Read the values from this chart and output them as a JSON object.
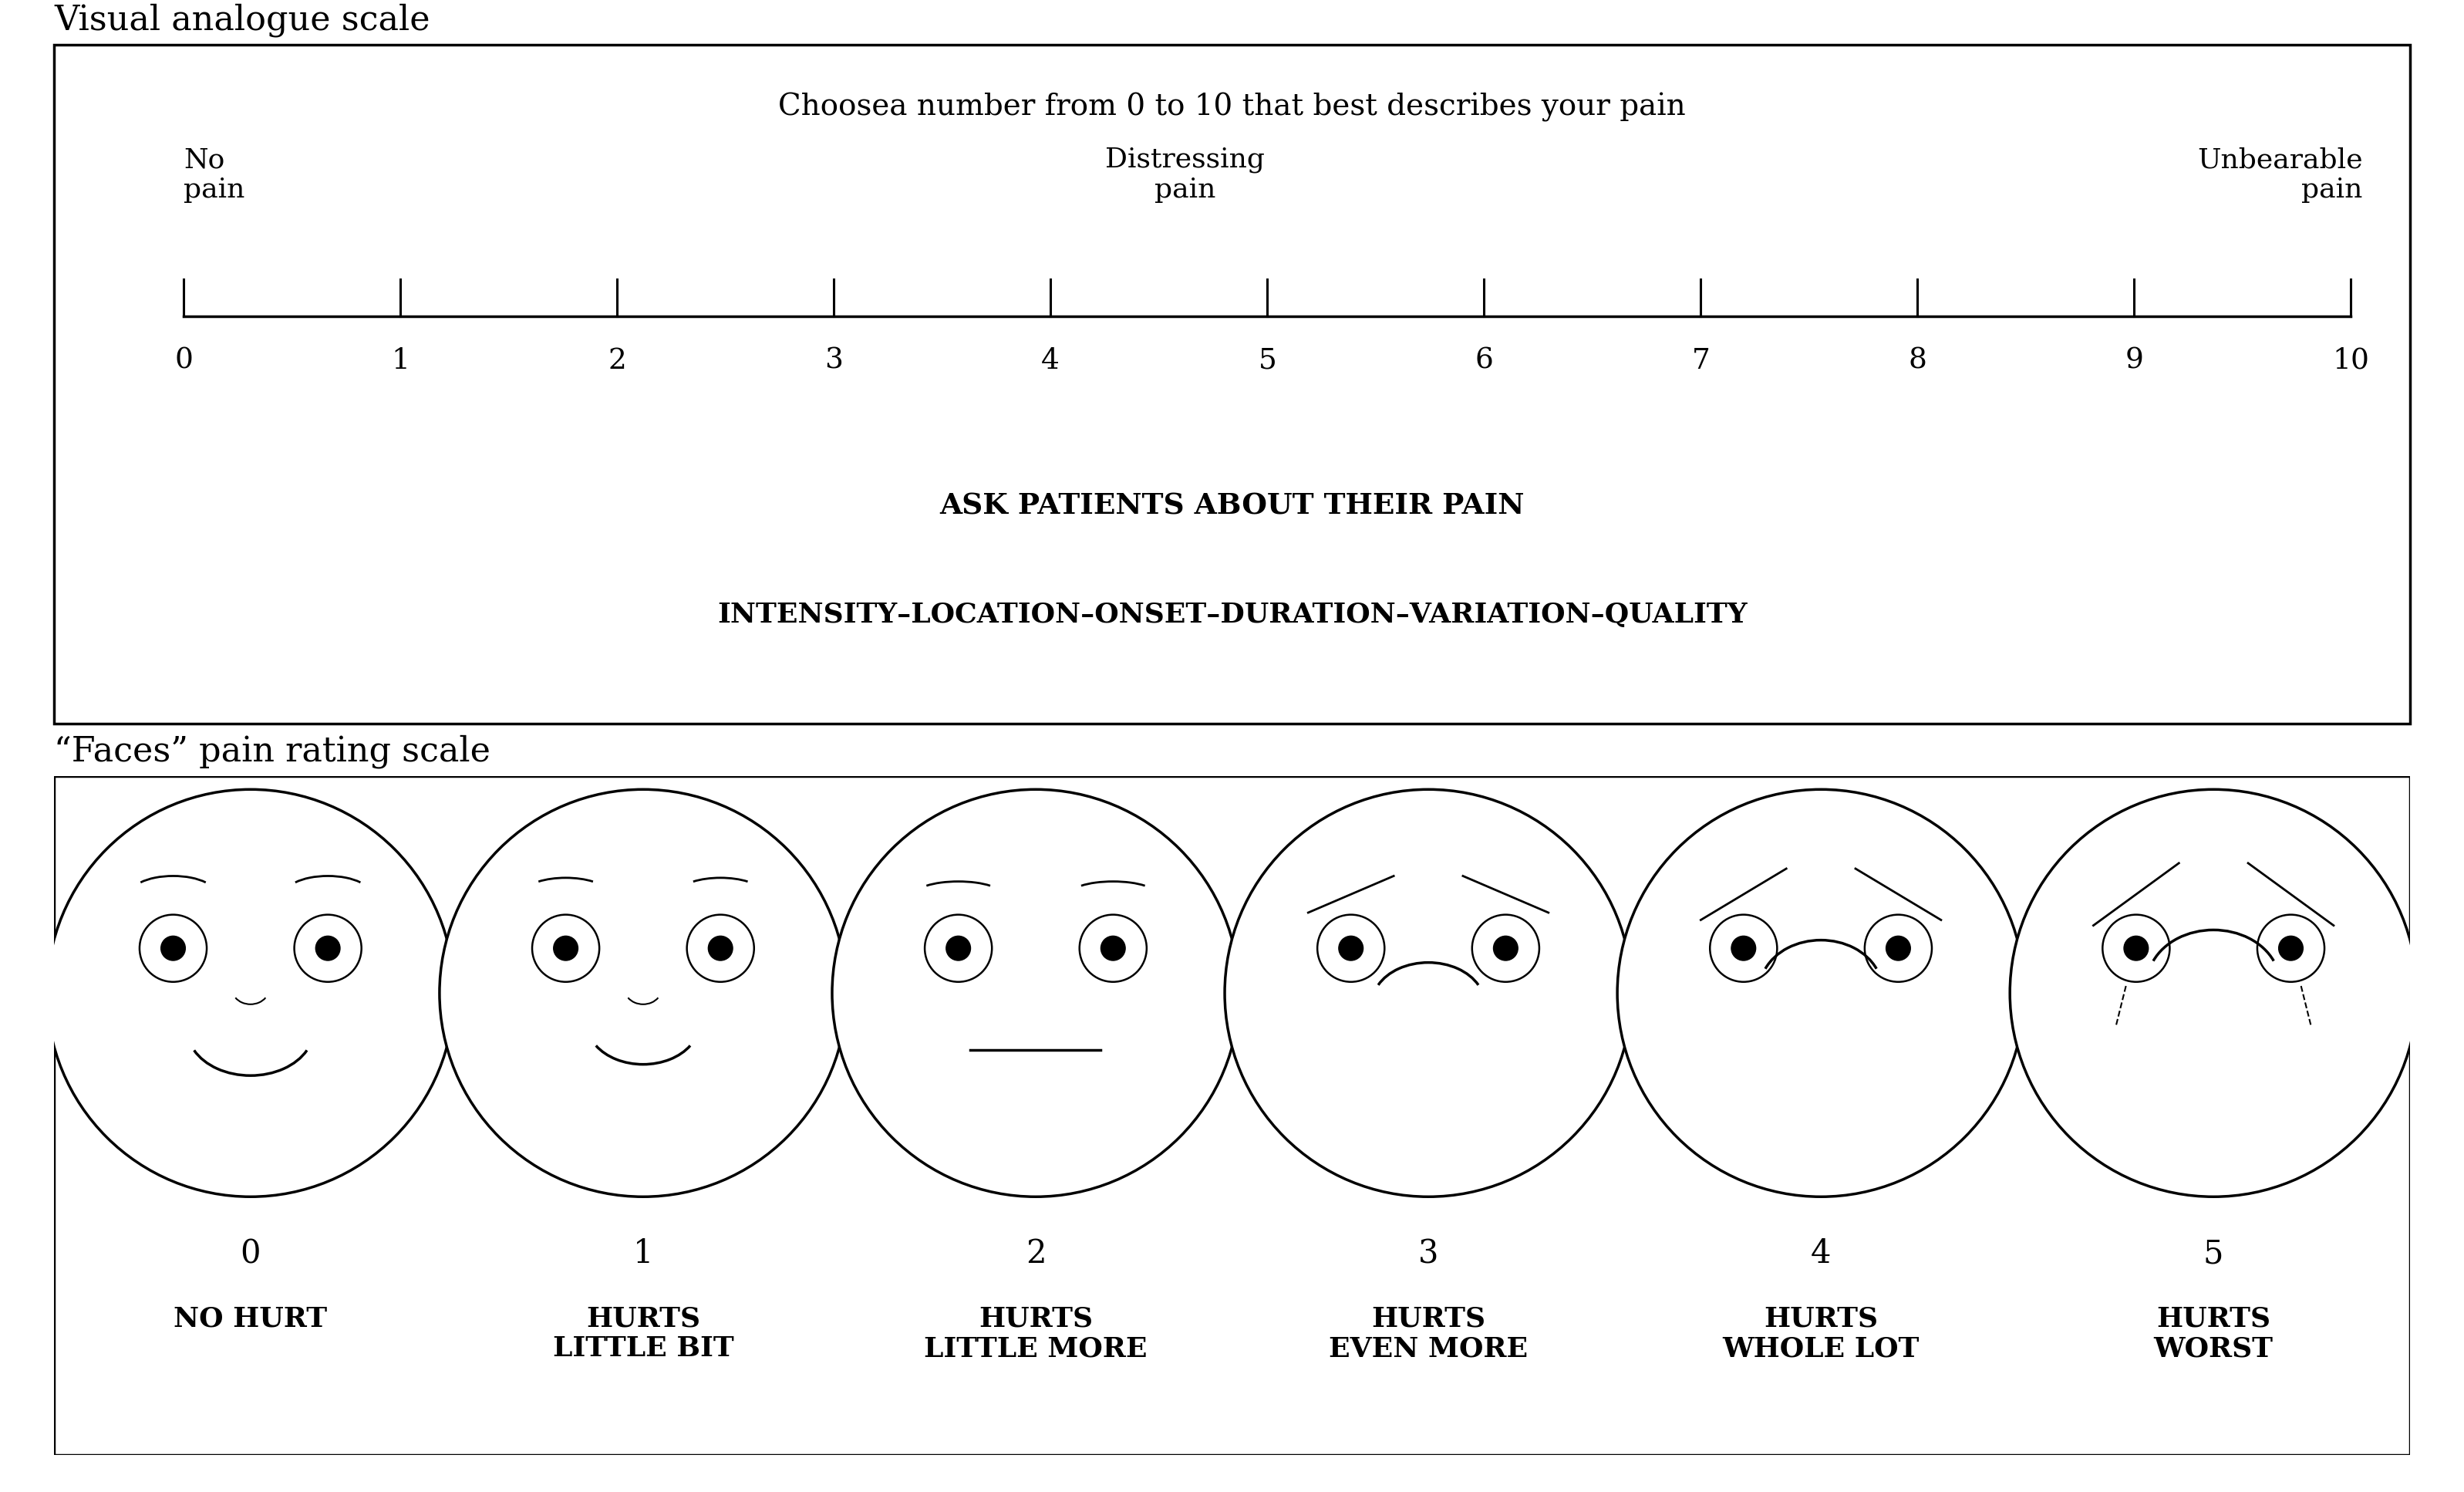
{
  "title_vas": "Visual analogue scale",
  "title_faces": "“Faces” pain rating scale",
  "vas_instruction": "Choosea number from 0 to 10 that best describes your pain",
  "vas_label_left": "No\npain",
  "vas_label_mid": "Distressing\npain",
  "vas_label_right": "Unbearable\npain",
  "vas_numbers": [
    0,
    1,
    2,
    3,
    4,
    5,
    6,
    7,
    8,
    9,
    10
  ],
  "vas_text1": "ASK PATIENTS ABOUT THEIR PAIN",
  "vas_text2": "INTENSITY–LOCATION–ONSET–DURATION–VARIATION–QUALITY",
  "face_numbers": [
    "0",
    "1",
    "2",
    "3",
    "4",
    "5"
  ],
  "face_labels": [
    "NO HURT",
    "HURTS\nLITTLE BIT",
    "HURTS\nLITTLE MORE",
    "HURTS\nEVEN MORE",
    "HURTS\nWHOLE LOT",
    "HURTS\nWORST"
  ],
  "bg_color": "#ffffff",
  "text_color": "#000000"
}
